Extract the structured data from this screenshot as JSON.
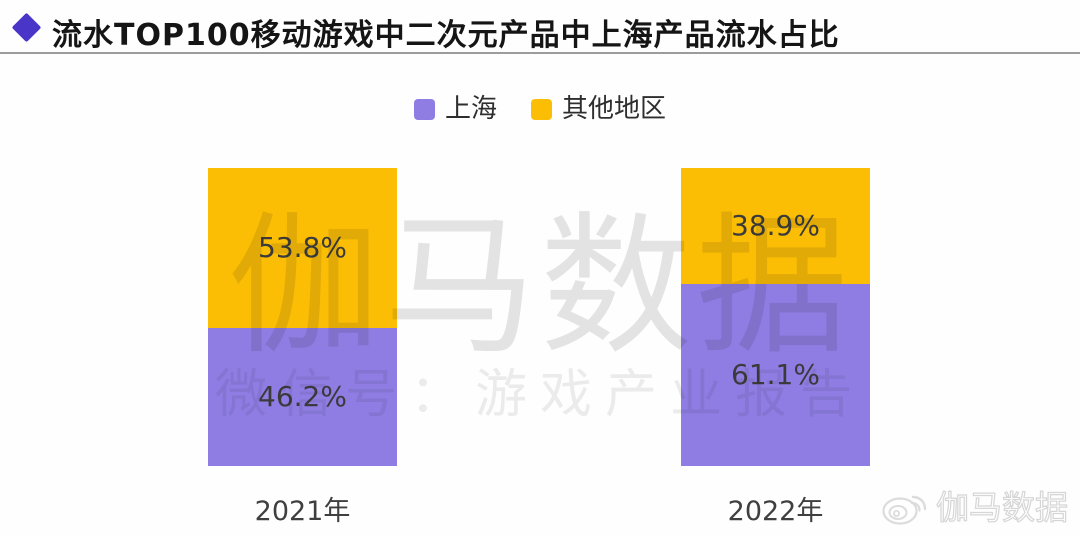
{
  "header": {
    "title": "流水TOP100移动游戏中二次元产品中上海产品流水占比"
  },
  "legend": {
    "items": [
      {
        "label": "上海",
        "color": "#8F7DE3"
      },
      {
        "label": "其他地区",
        "color": "#FCBE04"
      }
    ]
  },
  "chart_data": {
    "type": "bar",
    "subtype": "100-percent-stacked-column",
    "title": "流水TOP100移动游戏中二次元产品中上海产品流水占比",
    "categories": [
      "2021年",
      "2022年"
    ],
    "series": [
      {
        "name": "上海",
        "color": "#8F7DE3",
        "values": [
          46.2,
          61.1
        ],
        "labels": [
          "46.2%",
          "61.1%"
        ]
      },
      {
        "name": "其他地区",
        "color": "#FCBE04",
        "values": [
          53.8,
          38.9
        ],
        "labels": [
          "53.8%",
          "38.9%"
        ]
      }
    ],
    "stack_order_bottom_to_top": [
      "上海",
      "其他地区"
    ],
    "value_format": "percent",
    "ylim": [
      0,
      100
    ],
    "grid": false,
    "legend_position": "top-center"
  },
  "watermarks": {
    "center_primary": "伽马数据",
    "center_secondary": "微信号：游戏产业报告",
    "corner_brand": "伽马数据"
  },
  "colors": {
    "accent_diamond": "#4936C8",
    "divider": "#9C9C9C",
    "label_text": "#3B3B3B"
  }
}
